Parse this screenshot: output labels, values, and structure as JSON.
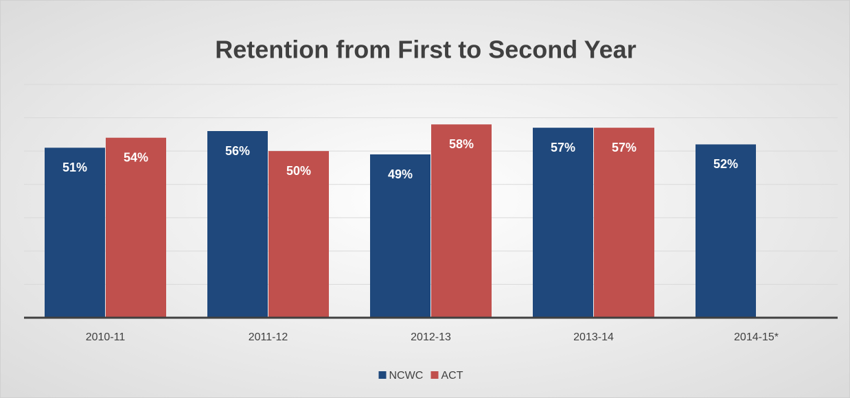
{
  "chart_data": {
    "type": "bar",
    "title": "Retention from First to Second Year",
    "categories": [
      "2010-11",
      "2011-12",
      "2012-13",
      "2013-14",
      "2014-15*"
    ],
    "series": [
      {
        "name": "NCWC",
        "color": "#1f487c",
        "values": [
          51,
          56,
          49,
          57,
          52
        ],
        "value_labels": [
          "51%",
          "56%",
          "49%",
          "57%",
          "52%"
        ]
      },
      {
        "name": "ACT",
        "color": "#c0504d",
        "values": [
          54,
          50,
          58,
          57,
          null
        ],
        "value_labels": [
          "54%",
          "50%",
          "58%",
          "57%",
          null
        ]
      }
    ],
    "ylim": [
      0,
      70
    ],
    "yticks": [
      0,
      10,
      20,
      30,
      40,
      50,
      60,
      70
    ],
    "grid": true,
    "legend": "bottom"
  }
}
